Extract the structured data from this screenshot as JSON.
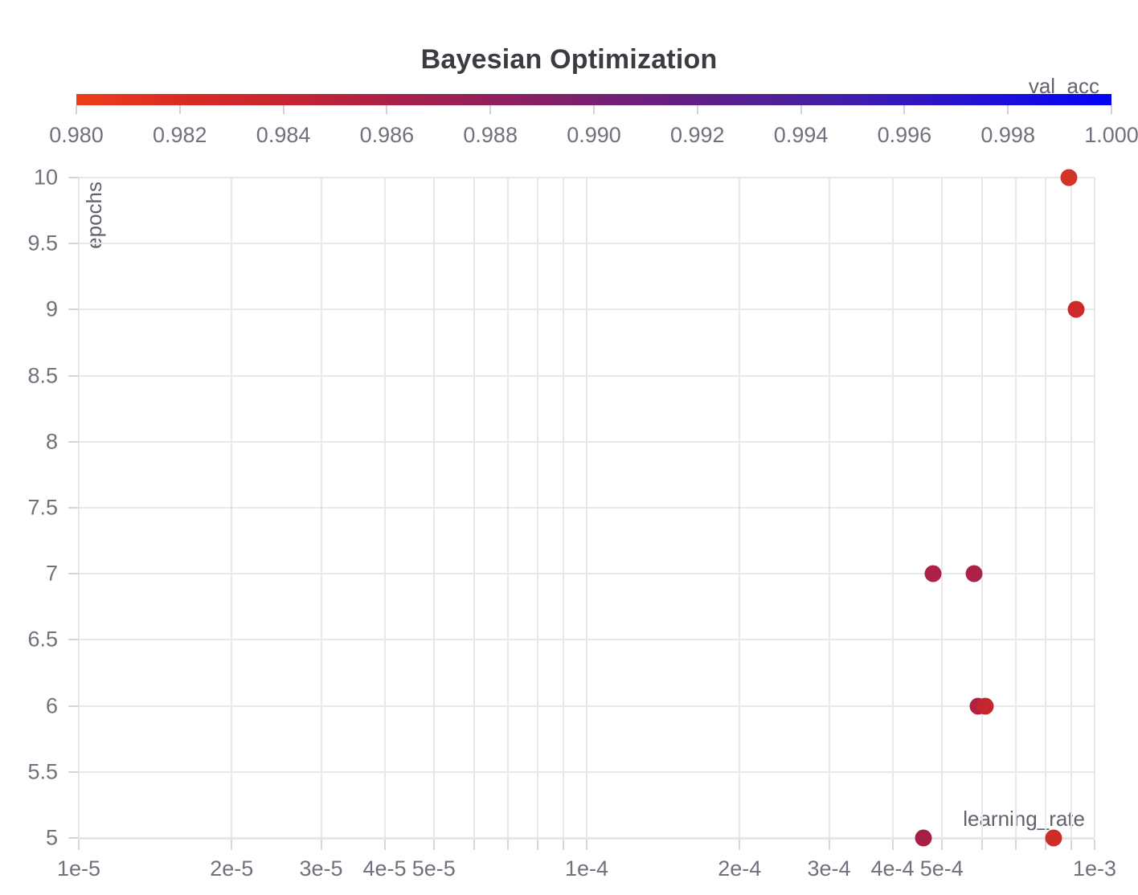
{
  "title": "Bayesian Optimization",
  "colorbar": {
    "label": "val_acc",
    "min": 0.98,
    "max": 1.0,
    "tick_labels": [
      "0.980",
      "0.982",
      "0.984",
      "0.986",
      "0.988",
      "0.990",
      "0.992",
      "0.994",
      "0.996",
      "0.998",
      "1.000"
    ],
    "gradient_stops": [
      "#ee3d1a",
      "#da2b24",
      "#c62530",
      "#ac2047",
      "#921f5b",
      "#782071",
      "#5f1f86",
      "#49209d",
      "#3418bd",
      "#1b0edc",
      "#0302f8"
    ]
  },
  "chart_data": {
    "type": "scatter",
    "title": "Bayesian Optimization",
    "xlabel": "learning_rate",
    "ylabel": "epochs",
    "color_label": "val_acc",
    "x_scale": "log",
    "xlim": [
      1e-05,
      0.001
    ],
    "ylim": [
      5,
      10
    ],
    "color_range": [
      0.98,
      1.0
    ],
    "grid": true,
    "x_gridlines": [
      1e-05,
      2e-05,
      3e-05,
      4e-05,
      5e-05,
      6e-05,
      7e-05,
      8e-05,
      9e-05,
      0.0001,
      0.0002,
      0.0003,
      0.0004,
      0.0005,
      0.0006,
      0.0007,
      0.0008,
      0.0009,
      0.001
    ],
    "x_tick_labels": [
      {
        "value": 1e-05,
        "label": "1e-5"
      },
      {
        "value": 2e-05,
        "label": "2e-5"
      },
      {
        "value": 3e-05,
        "label": "3e-5"
      },
      {
        "value": 4e-05,
        "label": "4e-5"
      },
      {
        "value": 5e-05,
        "label": "5e-5"
      },
      {
        "value": 0.0001,
        "label": "1e-4"
      },
      {
        "value": 0.0002,
        "label": "2e-4"
      },
      {
        "value": 0.0003,
        "label": "3e-4"
      },
      {
        "value": 0.0004,
        "label": "4e-4"
      },
      {
        "value": 0.0005,
        "label": "5e-4"
      },
      {
        "value": 0.001,
        "label": "1e-3"
      }
    ],
    "y_ticks": [
      {
        "value": 10,
        "label": "10"
      },
      {
        "value": 9.5,
        "label": "9.5"
      },
      {
        "value": 9,
        "label": "9"
      },
      {
        "value": 8.5,
        "label": "8.5"
      },
      {
        "value": 8,
        "label": "8"
      },
      {
        "value": 7.5,
        "label": "7.5"
      },
      {
        "value": 7,
        "label": "7"
      },
      {
        "value": 6.5,
        "label": "6.5"
      },
      {
        "value": 6,
        "label": "6"
      },
      {
        "value": 5.5,
        "label": "5.5"
      },
      {
        "value": 5,
        "label": "5"
      }
    ],
    "points": [
      {
        "learning_rate": 0.00089,
        "epochs": 10,
        "val_acc": 0.9815,
        "color": "#d2342a"
      },
      {
        "learning_rate": 0.00092,
        "epochs": 9,
        "val_acc": 0.982,
        "color": "#cc2928"
      },
      {
        "learning_rate": 0.00048,
        "epochs": 7,
        "val_acc": 0.9855,
        "color": "#ab2147"
      },
      {
        "learning_rate": 0.00058,
        "epochs": 7,
        "val_acc": 0.9855,
        "color": "#ab2147"
      },
      {
        "learning_rate": 0.00059,
        "epochs": 6,
        "val_acc": 0.985,
        "color": "#b02245"
      },
      {
        "learning_rate": 0.00061,
        "epochs": 6,
        "val_acc": 0.983,
        "color": "#c5262d"
      },
      {
        "learning_rate": 0.00046,
        "epochs": 5,
        "val_acc": 0.986,
        "color": "#a81f45"
      },
      {
        "learning_rate": 0.00083,
        "epochs": 5,
        "val_acc": 0.982,
        "color": "#cd2e27"
      }
    ]
  }
}
